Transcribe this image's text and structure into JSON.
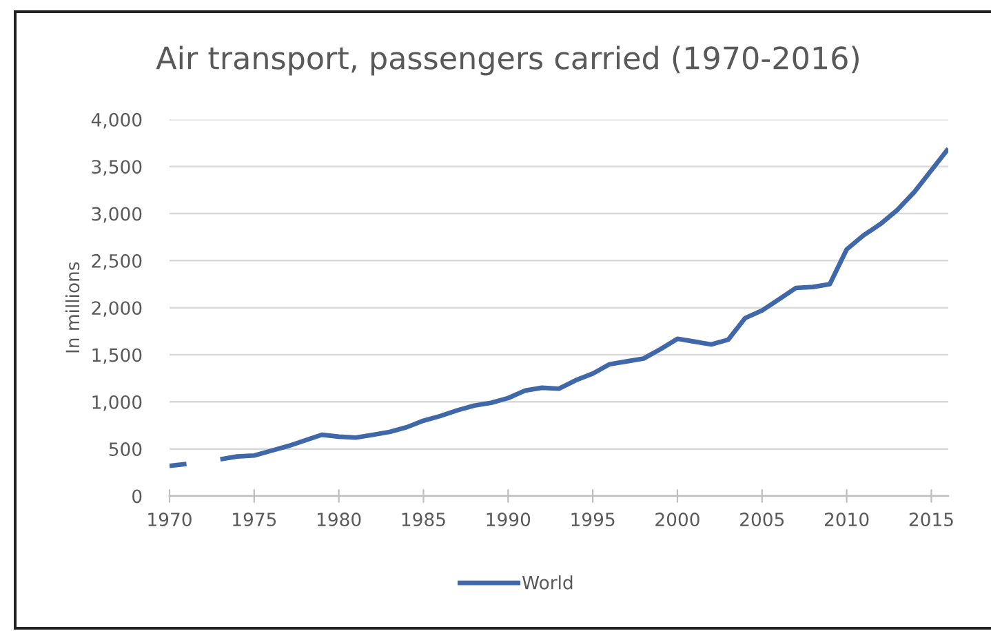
{
  "chart_data": {
    "type": "line",
    "title": "Air transport, passengers carried (1970-2016)",
    "ylabel": "In millions",
    "x": [
      1970,
      1971,
      1972,
      1973,
      1974,
      1975,
      1976,
      1977,
      1978,
      1979,
      1980,
      1981,
      1982,
      1983,
      1984,
      1985,
      1986,
      1987,
      1988,
      1989,
      1990,
      1991,
      1992,
      1993,
      1994,
      1995,
      1996,
      1997,
      1998,
      1999,
      2000,
      2001,
      2002,
      2003,
      2004,
      2005,
      2006,
      2007,
      2008,
      2009,
      2010,
      2011,
      2012,
      2013,
      2014,
      2015,
      2016
    ],
    "series": [
      {
        "name": "World",
        "color": "#4068a8",
        "values": [
          320,
          340,
          null,
          390,
          420,
          430,
          480,
          530,
          590,
          650,
          630,
          620,
          650,
          680,
          730,
          800,
          850,
          910,
          960,
          990,
          1040,
          1120,
          1150,
          1140,
          1230,
          1300,
          1400,
          1430,
          1460,
          1560,
          1670,
          1640,
          1610,
          1660,
          1890,
          1970,
          2090,
          2210,
          2220,
          2250,
          2620,
          2770,
          2890,
          3040,
          3230,
          3460,
          3690
        ]
      }
    ],
    "xlim": [
      1970,
      2016
    ],
    "ylim": [
      0,
      4000
    ],
    "xticks": [
      1970,
      1975,
      1980,
      1985,
      1990,
      1995,
      2000,
      2005,
      2010,
      2015
    ],
    "yticks": [
      0,
      500,
      {
        "value": 1000,
        "label": "1,000"
      },
      {
        "value": 1500,
        "label": "1,500"
      },
      {
        "value": 2000,
        "label": "2,000"
      },
      {
        "value": 2500,
        "label": "2,500"
      },
      {
        "value": 3000,
        "label": "3,000"
      },
      {
        "value": 3500,
        "label": "3,500"
      },
      {
        "value": 4000,
        "label": "4,000"
      }
    ],
    "grid": "y",
    "legend": "bottom",
    "line_style": "solid"
  }
}
